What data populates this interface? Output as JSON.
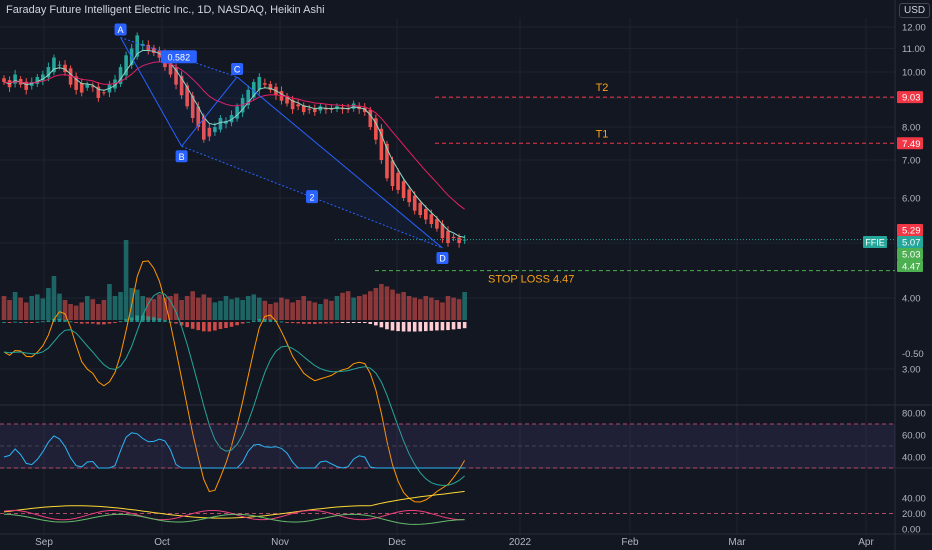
{
  "header": {
    "title": "Faraday Future Intelligent Electric Inc., 1D, NASDAQ, Heikin Ashi",
    "currency": "USD"
  },
  "colors": {
    "background": "#131722",
    "up": "#26a69a",
    "down": "#ef5350",
    "grid": "#1f2330",
    "pattern_label": "#2962ff",
    "target_line": "#f23645",
    "stop_line": "#4caf50",
    "annotation_text": "#f7a21b",
    "ema_fast": "#8fd9c4",
    "ema_slow": "#e91e63"
  },
  "annotations": {
    "pattern_points": [
      "A",
      "B",
      "C",
      "D"
    ],
    "ratio_label": "0.582",
    "ratio_label_2": "2",
    "target2": "T2",
    "target1": "T1",
    "stop_loss": "STOP LOSS 4.47"
  },
  "price_labels": {
    "t2": "9.03",
    "t1": "7.49",
    "high": "5.29",
    "ticker": "FFIE",
    "last": "5.07",
    "close": "5.03",
    "stop": "4.47"
  },
  "chart_data": [
    {
      "type": "candlestick",
      "title": "Faraday Future Intelligent Electric Inc., 1D, NASDAQ, Heikin Ashi",
      "x_ticks": [
        "Sep",
        "Oct",
        "Nov",
        "Dec",
        "2022",
        "Feb",
        "Mar",
        "Apr"
      ],
      "y_ticks": [
        "12.00",
        "11.00",
        "10.00",
        "9.00",
        "8.00",
        "7.00",
        "6.00",
        "5.00",
        "4.00",
        "3.00"
      ],
      "ylim": [
        3,
        12.5
      ],
      "scale": "log",
      "grid": true,
      "closes": [
        9.6,
        9.4,
        9.9,
        9.5,
        9.3,
        9.6,
        9.8,
        9.9,
        10.2,
        10.6,
        10.3,
        10.0,
        9.5,
        9.3,
        9.2,
        9.5,
        9.4,
        9.0,
        9.2,
        9.5,
        9.7,
        10.2,
        10.7,
        11.0,
        11.6,
        11.2,
        10.9,
        10.8,
        10.6,
        10.2,
        9.9,
        9.5,
        9.1,
        8.7,
        8.3,
        8.0,
        7.6,
        7.7,
        8.0,
        8.3,
        8.2,
        8.4,
        8.7,
        9.0,
        9.3,
        9.6,
        9.8,
        9.5,
        9.3,
        9.1,
        8.9,
        8.8,
        8.6,
        8.7,
        8.5,
        8.6,
        8.5,
        8.7,
        8.6,
        8.6,
        8.7,
        8.6,
        8.6,
        8.8,
        8.6,
        8.5,
        8.0,
        7.6,
        7.0,
        6.5,
        6.3,
        6.2,
        6.0,
        5.9,
        5.7,
        5.6,
        5.5,
        5.4,
        5.3,
        5.1,
        5.0,
        5.1,
        5.0,
        5.07
      ],
      "levels": {
        "T2": 9.03,
        "T1": 7.49,
        "stop_loss": 4.47,
        "last": 5.07
      },
      "harmonic_pattern": [
        {
          "label": "A",
          "price": 11.5
        },
        {
          "label": "B",
          "price": 7.4
        },
        {
          "label": "C",
          "price": 9.8
        },
        {
          "label": "D",
          "price": 4.9
        }
      ]
    },
    {
      "type": "bar",
      "title": "",
      "note": "volume histogram, values relative to the tallest bar (1.0)",
      "values": [
        0.3,
        0.25,
        0.35,
        0.28,
        0.22,
        0.3,
        0.32,
        0.27,
        0.4,
        0.55,
        0.33,
        0.25,
        0.2,
        0.18,
        0.22,
        0.3,
        0.26,
        0.2,
        0.25,
        0.45,
        0.3,
        0.35,
        1.0,
        0.4,
        0.38,
        0.3,
        0.28,
        0.26,
        0.32,
        0.28,
        0.3,
        0.33,
        0.25,
        0.3,
        0.36,
        0.28,
        0.32,
        0.28,
        0.22,
        0.24,
        0.3,
        0.26,
        0.28,
        0.25,
        0.3,
        0.32,
        0.28,
        0.24,
        0.2,
        0.22,
        0.28,
        0.26,
        0.22,
        0.25,
        0.3,
        0.24,
        0.22,
        0.2,
        0.26,
        0.24,
        0.3,
        0.34,
        0.36,
        0.28,
        0.3,
        0.32,
        0.36,
        0.4,
        0.45,
        0.42,
        0.38,
        0.33,
        0.35,
        0.3,
        0.28,
        0.26,
        0.3,
        0.28,
        0.25,
        0.22,
        0.3,
        0.28,
        0.26,
        0.35
      ]
    },
    {
      "type": "line",
      "title": "",
      "note": "MACD-style oscillator",
      "y_ticks": [
        "-0.50"
      ]
    },
    {
      "type": "line",
      "title": "",
      "note": "RSI-style oscillator",
      "y_ticks": [
        "80.00",
        "60.00",
        "40.00"
      ],
      "levels": [
        70,
        50,
        30
      ]
    },
    {
      "type": "line",
      "title": "",
      "note": "DMI-style oscillator",
      "y_ticks": [
        "40.00",
        "20.00",
        "0.00"
      ]
    }
  ]
}
